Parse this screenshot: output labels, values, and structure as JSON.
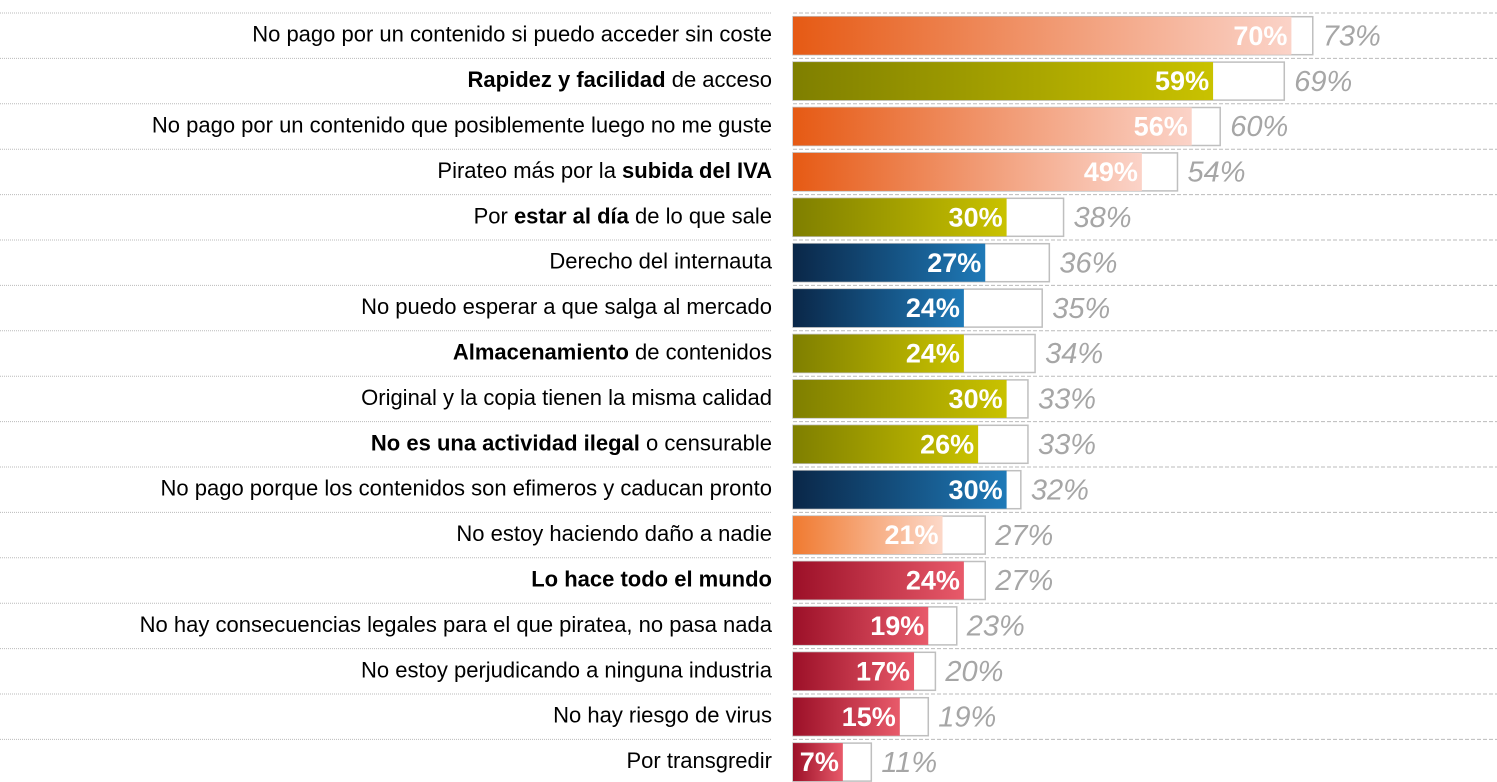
{
  "chart_data": {
    "type": "bar",
    "categories": [
      [
        {
          "text": "No pago por un contenido si puedo acceder sin coste",
          "bold": false
        }
      ],
      [
        {
          "text": "Rapidez y facilidad",
          "bold": true
        },
        {
          "text": " de acceso",
          "bold": false
        }
      ],
      [
        {
          "text": "No pago por un contenido que posiblemente luego no me guste",
          "bold": false
        }
      ],
      [
        {
          "text": "Pirateo más por la ",
          "bold": false
        },
        {
          "text": "subida del IVA",
          "bold": true
        }
      ],
      [
        {
          "text": "Por ",
          "bold": false
        },
        {
          "text": "estar al día",
          "bold": true
        },
        {
          "text": " de lo que sale",
          "bold": false
        }
      ],
      [
        {
          "text": "Derecho del internauta",
          "bold": false
        }
      ],
      [
        {
          "text": "No puedo esperar a que salga al mercado",
          "bold": false
        }
      ],
      [
        {
          "text": "Almacenamiento",
          "bold": true
        },
        {
          "text": " de contenidos",
          "bold": false
        }
      ],
      [
        {
          "text": "Original y la copia tienen la misma calidad",
          "bold": false
        }
      ],
      [
        {
          "text": "No es una actividad ilegal",
          "bold": true
        },
        {
          "text": " o censurable",
          "bold": false
        }
      ],
      [
        {
          "text": "No pago porque los contenidos son efimeros y caducan pronto",
          "bold": false
        }
      ],
      [
        {
          "text": "No estoy haciendo daño a nadie",
          "bold": false
        }
      ],
      [
        {
          "text": "Lo hace todo el mundo",
          "bold": true
        }
      ],
      [
        {
          "text": "No hay consecuencias legales para el que piratea, no pasa nada",
          "bold": false
        }
      ],
      [
        {
          "text": "No estoy perjudicando a ninguna industria",
          "bold": false
        }
      ],
      [
        {
          "text": "No hay riesgo de virus",
          "bold": false
        }
      ],
      [
        {
          "text": "Por transgredir",
          "bold": false
        }
      ]
    ],
    "series": [
      {
        "values": [
          70,
          59,
          56,
          49,
          30,
          27,
          24,
          24,
          30,
          26,
          30,
          21,
          24,
          19,
          17,
          15,
          7
        ],
        "value_labels": [
          "70%",
          "59%",
          "56%",
          "49%",
          "30%",
          "27%",
          "24%",
          "24%",
          "30%",
          "26%",
          "30%",
          "21%",
          "24%",
          "19%",
          "17%",
          "15%",
          "7%"
        ],
        "colors": [
          [
            "#e65a14",
            "#fbd3c8"
          ],
          [
            "#7f7f00",
            "#c9c200"
          ],
          [
            "#e65a14",
            "#fbd3c8"
          ],
          [
            "#e65a14",
            "#fbd3c8"
          ],
          [
            "#7f7f00",
            "#c9c200"
          ],
          [
            "#0a2748",
            "#1f7ab8"
          ],
          [
            "#0a2748",
            "#1f7ab8"
          ],
          [
            "#7f7f00",
            "#c9c200"
          ],
          [
            "#7f7f00",
            "#c9c200"
          ],
          [
            "#7f7f00",
            "#c9c200"
          ],
          [
            "#0a2748",
            "#1f7ab8"
          ],
          [
            "#f07a30",
            "#fcd8c8"
          ],
          [
            "#9c1028",
            "#e85a6a"
          ],
          [
            "#9c1028",
            "#e85a6a"
          ],
          [
            "#9c1028",
            "#e85a6a"
          ],
          [
            "#9c1028",
            "#e85a6a"
          ],
          [
            "#9c1028",
            "#e85a6a"
          ]
        ]
      },
      {
        "values": [
          73,
          69,
          60,
          54,
          38,
          36,
          35,
          34,
          33,
          33,
          32,
          27,
          27,
          23,
          20,
          19,
          11
        ],
        "value_labels": [
          "73%",
          "69%",
          "60%",
          "54%",
          "38%",
          "36%",
          "35%",
          "34%",
          "33%",
          "33%",
          "32%",
          "27%",
          "27%",
          "23%",
          "20%",
          "19%",
          "11%"
        ]
      }
    ]
  }
}
